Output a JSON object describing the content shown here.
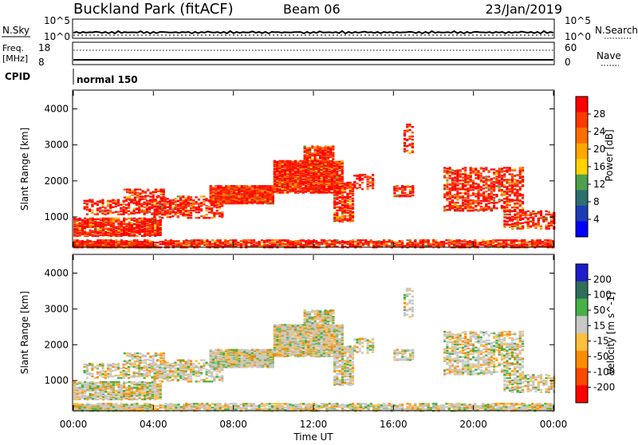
{
  "header": {
    "station": "Buckland Park (fitACF)",
    "beam": "Beam 06",
    "date": "23/Jan/2019"
  },
  "top_panels": {
    "nsky_label": "N.Sky",
    "nsky_ticks": [
      "10^5",
      "10^0"
    ],
    "nsearch_label": "N.Search",
    "nsearch_ticks": [
      "10^5",
      "10^0"
    ],
    "freq_label_1": "Freq.",
    "freq_label_2": "[MHz]",
    "freq_ticks": [
      "18",
      "8"
    ],
    "nave_label": "Nave",
    "nave_ticks": [
      "60",
      "0"
    ],
    "cpid_label": "CPID",
    "cpid_value": "normal 150"
  },
  "chart_data": [
    {
      "type": "heatmap",
      "name": "power-panel",
      "ylabel": "Slant Range [km]",
      "yticks": [
        "4000",
        "3000",
        "2000",
        "1000"
      ],
      "ylim": [
        180,
        4500
      ],
      "colorbar_label": "Power [dB]",
      "colorbar_ticks": [
        "28",
        "24",
        "20",
        "16",
        "12",
        "8",
        "4"
      ],
      "colorbar_colors": [
        "#ff0000",
        "#ff3a00",
        "#ff6e00",
        "#ffa800",
        "#ffd400",
        "#4ea04e",
        "#2e6e6e",
        "#1e3cb4",
        "#0000ff"
      ],
      "colorbar_range": [
        0,
        32
      ]
    },
    {
      "type": "heatmap",
      "name": "velocity-panel",
      "ylabel": "Slant Range [km]",
      "yticks": [
        "4000",
        "3000",
        "2000",
        "1000"
      ],
      "ylim": [
        180,
        4500
      ],
      "colorbar_label": "Velocity [m s^-1]",
      "colorbar_ticks": [
        "200",
        "100",
        "50",
        "15",
        "-15",
        "-50",
        "-100",
        "-200"
      ],
      "colorbar_colors": [
        "#1e1ec8",
        "#2e6e5a",
        "#48b048",
        "#c8c8c8",
        "#ffc040",
        "#ff8c00",
        "#ff4800",
        "#ff0000"
      ]
    }
  ],
  "x_axis": {
    "ticks": [
      "00:00",
      "04:00",
      "08:00",
      "12:00",
      "16:00",
      "20:00",
      "00:00"
    ],
    "label": "Time UT"
  }
}
